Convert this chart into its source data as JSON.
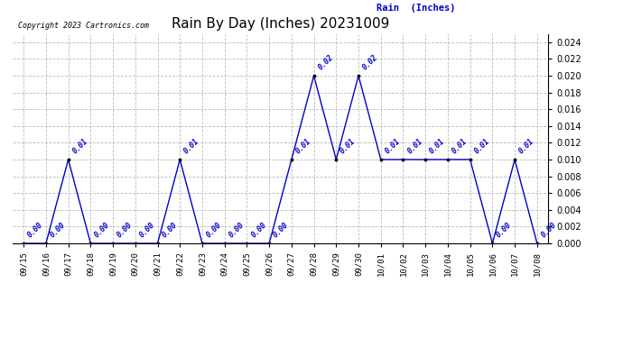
{
  "title": "Rain By Day (Inches) 20231009",
  "copyright_text": "Copyright 2023 Cartronics.com",
  "legend_label": "Rain  (Inches)",
  "dates": [
    "09/15",
    "09/16",
    "09/17",
    "09/18",
    "09/19",
    "09/20",
    "09/21",
    "09/22",
    "09/23",
    "09/24",
    "09/25",
    "09/26",
    "09/27",
    "09/28",
    "09/29",
    "09/30",
    "10/01",
    "10/02",
    "10/03",
    "10/04",
    "10/05",
    "10/06",
    "10/07",
    "10/08"
  ],
  "values": [
    0.0,
    0.0,
    0.01,
    0.0,
    0.0,
    0.0,
    0.0,
    0.01,
    0.0,
    0.0,
    0.0,
    0.0,
    0.01,
    0.02,
    0.01,
    0.02,
    0.01,
    0.01,
    0.01,
    0.01,
    0.01,
    0.0,
    0.01,
    0.0
  ],
  "line_color": "#0000cc",
  "marker_color": "#000000",
  "label_color": "#0000cc",
  "title_color": "#000000",
  "copyright_color": "#000000",
  "legend_color": "#0000cc",
  "background_color": "#ffffff",
  "grid_color": "#bbbbbb",
  "ylim": [
    0.0,
    0.025
  ],
  "yticks": [
    0.0,
    0.002,
    0.004,
    0.006,
    0.008,
    0.01,
    0.012,
    0.014,
    0.016,
    0.018,
    0.02,
    0.022,
    0.024
  ],
  "figsize": [
    6.9,
    3.75
  ],
  "dpi": 100
}
